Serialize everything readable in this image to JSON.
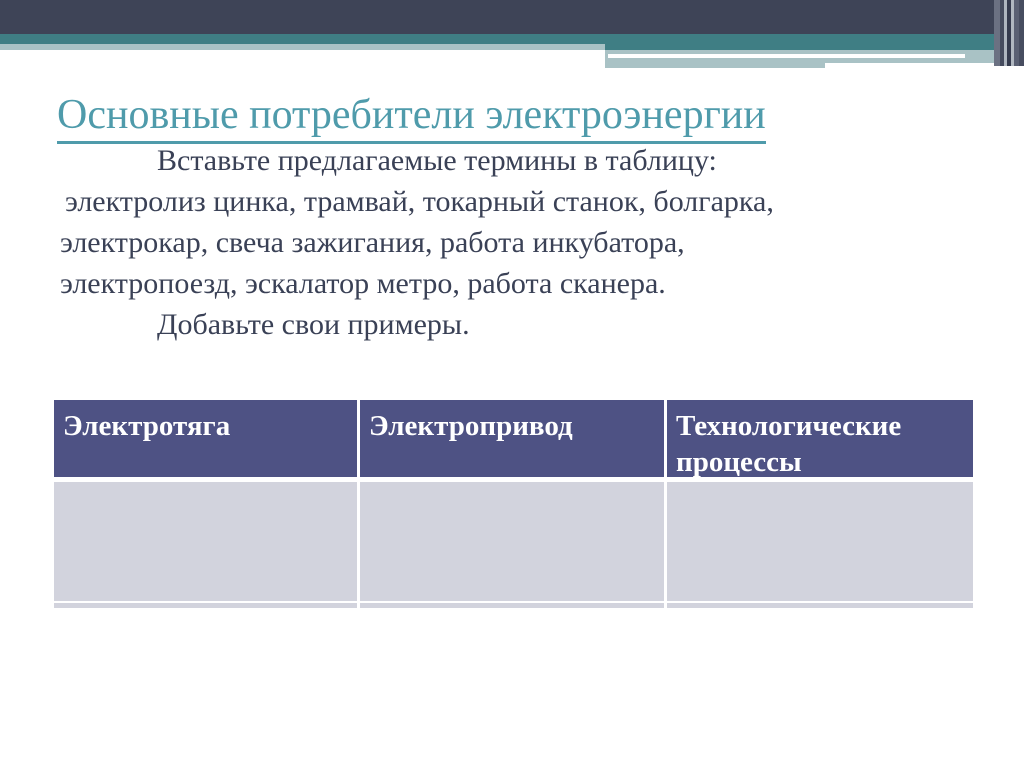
{
  "slide": {
    "title": "Основные потребители электроэнергии",
    "body_lines": [
      "Вставьте предлагаемые термины в таблицу:",
      "электролиз цинка, трамвай, токарный станок, болгарка,",
      "электрокар, свеча зажигания, работа инкубатора,",
      "электропоезд, эскалатор метро, работа сканера.",
      "Добавьте свои примеры."
    ],
    "table": {
      "headers": [
        "Электротяга",
        "Электропривод",
        "Технологические процессы"
      ],
      "rows": [
        [
          "",
          "",
          ""
        ],
        [
          "",
          "",
          ""
        ]
      ]
    },
    "colors": {
      "dark_slate": "#3e4457",
      "teal_bar": "#3f7e84",
      "light_band": "#a9c2c5",
      "title_teal": "#4f9bab",
      "text_dark": "#3a4156",
      "table_header_bg": "#4e5284",
      "table_body_bg": "#d2d3dd"
    }
  }
}
